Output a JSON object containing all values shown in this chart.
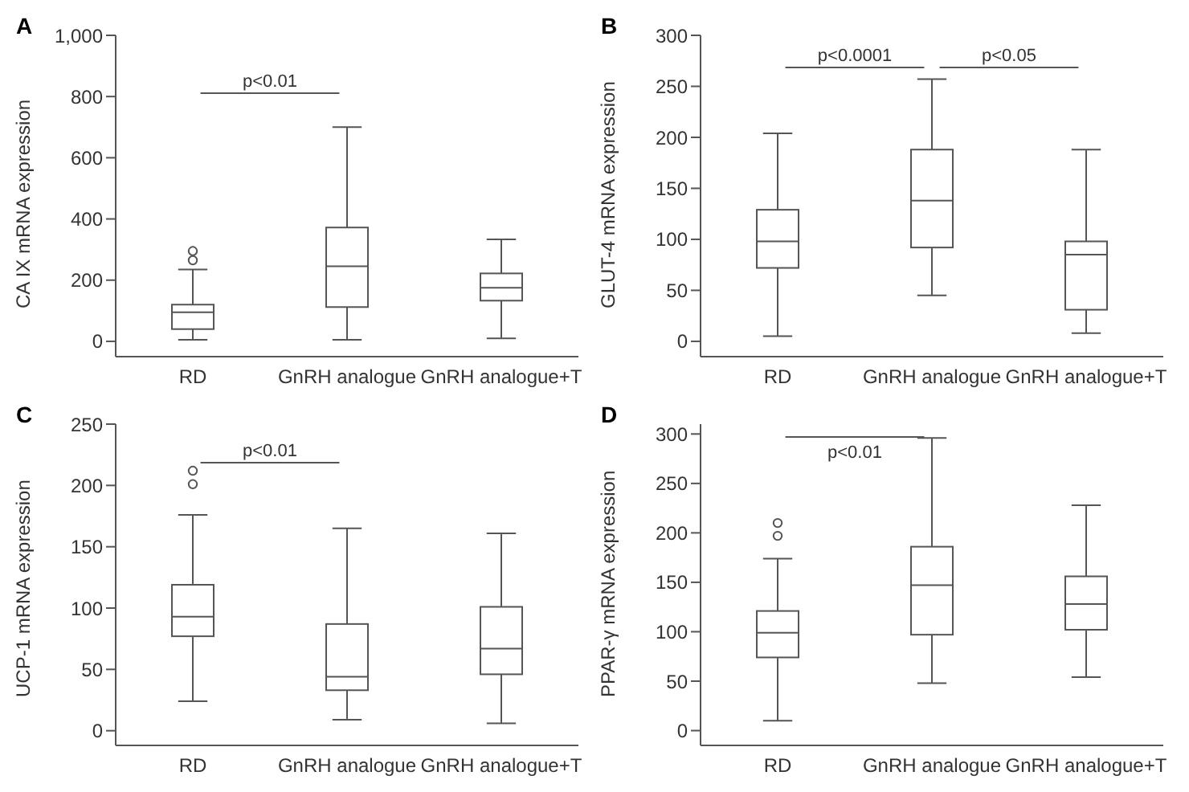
{
  "chart_data": [
    {
      "type": "box",
      "title": "A",
      "ylabel": "CA IX mRNA expression",
      "categories": [
        "RD",
        "GnRH analogue",
        "GnRH analogue+T"
      ],
      "color": "#555555",
      "ylim": [
        -50,
        1000
      ],
      "yticks": [
        0,
        200,
        400,
        600,
        800,
        {
          "value": 1000,
          "label": "1,000"
        }
      ],
      "boxes": [
        {
          "low": 5,
          "q1": 40,
          "median": 95,
          "q3": 120,
          "high": 235,
          "outliers": [
            265,
            295
          ]
        },
        {
          "low": 5,
          "q1": 112,
          "median": 245,
          "q3": 372,
          "high": 700
        },
        {
          "low": 10,
          "q1": 133,
          "median": 175,
          "q3": 222,
          "high": 333
        }
      ],
      "annotations": [
        "p<0.01"
      ]
    },
    {
      "type": "box",
      "title": "B",
      "ylabel": "GLUT-4 mRNA expression",
      "categories": [
        "RD",
        "GnRH analogue",
        "GnRH analogue+T"
      ],
      "color": "#555555",
      "ylim": [
        -15,
        300
      ],
      "yticks": [
        0,
        50,
        100,
        150,
        200,
        250,
        300
      ],
      "boxes": [
        {
          "low": 5,
          "q1": 72,
          "median": 98,
          "q3": 129,
          "high": 204
        },
        {
          "low": 45,
          "q1": 92,
          "median": 138,
          "q3": 188,
          "high": 257
        },
        {
          "low": 8,
          "q1": 31,
          "median": 85,
          "q3": 98,
          "high": 188
        }
      ],
      "annotations": [
        "p<0.0001",
        "p<0.05"
      ]
    },
    {
      "type": "box",
      "title": "C",
      "ylabel": "UCP-1 mRNA expression",
      "categories": [
        "RD",
        "GnRH analogue",
        "GnRH analogue+T"
      ],
      "color": "#555555",
      "ylim": [
        -12,
        250
      ],
      "yticks": [
        0,
        50,
        100,
        150,
        200,
        250
      ],
      "boxes": [
        {
          "low": 24,
          "q1": 77,
          "median": 93,
          "q3": 119,
          "high": 176,
          "outliers": [
            201,
            212
          ]
        },
        {
          "low": 9,
          "q1": 33,
          "median": 44,
          "q3": 87,
          "high": 165
        },
        {
          "low": 6,
          "q1": 46,
          "median": 67,
          "q3": 101,
          "high": 161
        }
      ],
      "annotations": [
        "p<0.01"
      ]
    },
    {
      "type": "box",
      "title": "D",
      "ylabel": "PPAR-γ mRNA expression",
      "categories": [
        "RD",
        "GnRH analogue",
        "GnRH analogue+T"
      ],
      "color": "#555555",
      "ylim": [
        -15,
        310
      ],
      "yticks": [
        0,
        50,
        100,
        150,
        200,
        250,
        300
      ],
      "boxes": [
        {
          "low": 10,
          "q1": 74,
          "median": 99,
          "q3": 121,
          "high": 174,
          "outliers": [
            197,
            210
          ]
        },
        {
          "low": 48,
          "q1": 97,
          "median": 147,
          "q3": 186,
          "high": 296
        },
        {
          "low": 54,
          "q1": 102,
          "median": 128,
          "q3": 156,
          "high": 228
        }
      ],
      "annotations": [
        "p<0.01"
      ]
    }
  ]
}
